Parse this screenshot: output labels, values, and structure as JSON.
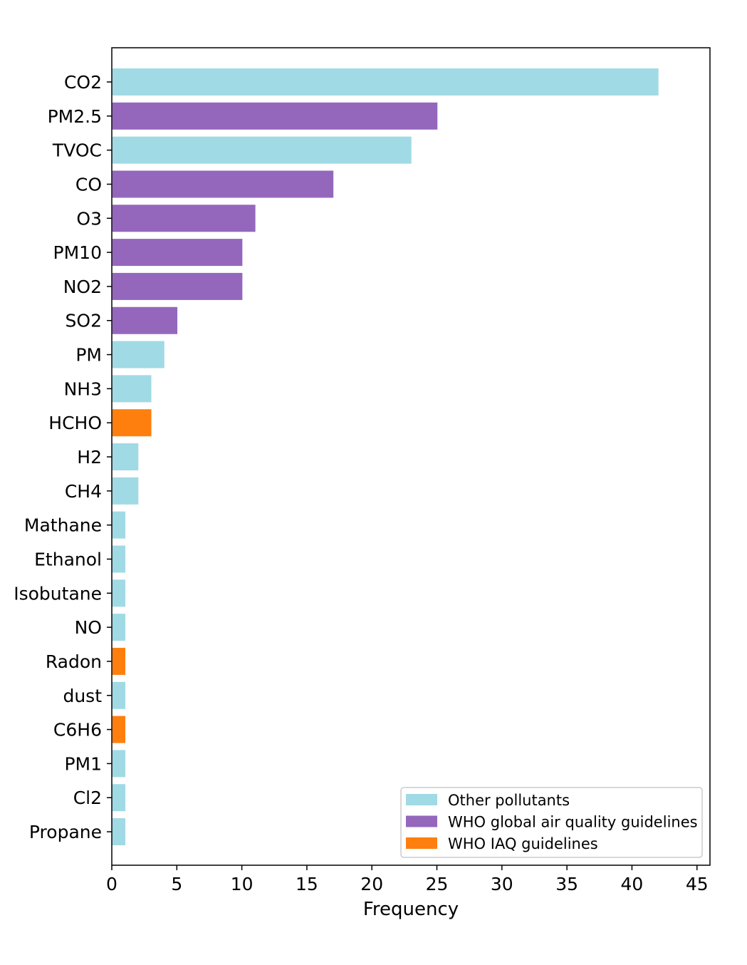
{
  "colors": {
    "Other pollutants": "#a0dae5",
    "WHO global air quality guidelines": "#9467bd",
    "WHO IAQ guidelines": "#ff7f0e"
  },
  "chart_data": {
    "type": "bar",
    "orientation": "horizontal",
    "categories": [
      "CO2",
      "PM2.5",
      "TVOC",
      "CO",
      "O3",
      "PM10",
      "NO2",
      "SO2",
      "PM",
      "NH3",
      "HCHO",
      "H2",
      "CH4",
      "Mathane",
      "Ethanol",
      "Isobutane",
      "NO",
      "Radon",
      "dust",
      "C6H6",
      "PM1",
      "Cl2",
      "Propane"
    ],
    "values": [
      42,
      25,
      23,
      17,
      11,
      10,
      10,
      5,
      4,
      3,
      3,
      2,
      2,
      1,
      1,
      1,
      1,
      1,
      1,
      1,
      1,
      1,
      1
    ],
    "groups": [
      "Other pollutants",
      "WHO global air quality guidelines",
      "Other pollutants",
      "WHO global air quality guidelines",
      "WHO global air quality guidelines",
      "WHO global air quality guidelines",
      "WHO global air quality guidelines",
      "WHO global air quality guidelines",
      "Other pollutants",
      "Other pollutants",
      "WHO IAQ guidelines",
      "Other pollutants",
      "Other pollutants",
      "Other pollutants",
      "Other pollutants",
      "Other pollutants",
      "Other pollutants",
      "WHO IAQ guidelines",
      "Other pollutants",
      "WHO IAQ guidelines",
      "Other pollutants",
      "Other pollutants",
      "Other pollutants"
    ],
    "legend": [
      "Other pollutants",
      "WHO global air quality guidelines",
      "WHO IAQ guidelines"
    ],
    "legend_position": "lower-right",
    "xlabel": "Frequency",
    "ylabel": "",
    "xlim": [
      0,
      46
    ],
    "xticks": [
      0,
      5,
      10,
      15,
      20,
      25,
      30,
      35,
      40,
      45
    ],
    "grid": false
  }
}
